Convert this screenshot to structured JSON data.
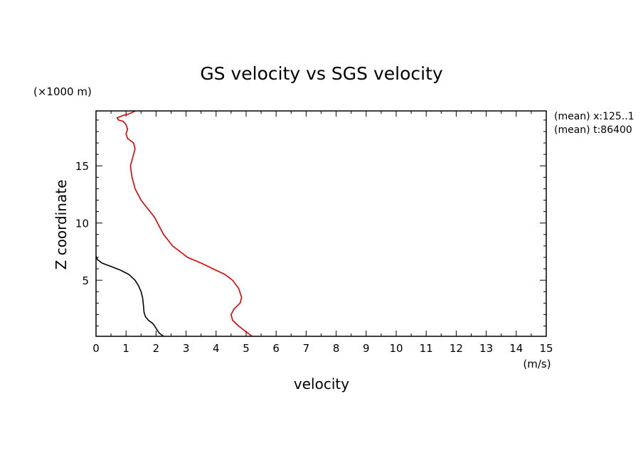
{
  "chart_data": {
    "type": "line",
    "title": "GS velocity vs SGS velocity",
    "xlabel": "velocity",
    "xunit": "(m/s)",
    "ylabel": "Z coordinate",
    "yunit": "(×1000 m)",
    "xlim": [
      0,
      15
    ],
    "ylim": [
      0.1,
      19.8
    ],
    "x_ticks": [
      0,
      1,
      2,
      3,
      4,
      5,
      6,
      7,
      8,
      9,
      10,
      11,
      12,
      13,
      14,
      15
    ],
    "y_ticks": [
      5,
      10,
      15
    ],
    "grid": false,
    "annotations": [
      "(mean) x:125..1",
      "(mean) t:86400"
    ],
    "series": [
      {
        "color": "#e00000",
        "points": [
          [
            5.2,
            0.1
          ],
          [
            5.0,
            0.5
          ],
          [
            4.75,
            1.0
          ],
          [
            4.55,
            1.5
          ],
          [
            4.5,
            2.0
          ],
          [
            4.6,
            2.5
          ],
          [
            4.8,
            3.0
          ],
          [
            4.85,
            3.5
          ],
          [
            4.75,
            4.3
          ],
          [
            4.55,
            5.0
          ],
          [
            4.3,
            5.5
          ],
          [
            3.9,
            6.0
          ],
          [
            3.5,
            6.5
          ],
          [
            3.05,
            7.0
          ],
          [
            2.8,
            7.5
          ],
          [
            2.55,
            8.0
          ],
          [
            2.4,
            8.5
          ],
          [
            2.25,
            9.0
          ],
          [
            2.15,
            9.5
          ],
          [
            2.05,
            10.0
          ],
          [
            1.95,
            10.5
          ],
          [
            1.8,
            11.0
          ],
          [
            1.65,
            11.5
          ],
          [
            1.5,
            12.0
          ],
          [
            1.4,
            12.5
          ],
          [
            1.3,
            13.0
          ],
          [
            1.25,
            13.5
          ],
          [
            1.2,
            14.0
          ],
          [
            1.17,
            14.5
          ],
          [
            1.15,
            15.0
          ],
          [
            1.2,
            15.5
          ],
          [
            1.25,
            16.0
          ],
          [
            1.3,
            16.5
          ],
          [
            1.25,
            17.0
          ],
          [
            1.05,
            17.4
          ],
          [
            1.0,
            17.8
          ],
          [
            1.05,
            18.2
          ],
          [
            1.0,
            18.6
          ],
          [
            0.9,
            18.9
          ],
          [
            0.75,
            19.0
          ],
          [
            0.7,
            19.2
          ],
          [
            0.9,
            19.4
          ],
          [
            1.05,
            19.5
          ],
          [
            1.2,
            19.65
          ],
          [
            1.3,
            19.8
          ]
        ]
      },
      {
        "color": "#000000",
        "points": [
          [
            2.25,
            0.1
          ],
          [
            2.1,
            0.4
          ],
          [
            2.0,
            0.8
          ],
          [
            1.9,
            1.2
          ],
          [
            1.75,
            1.5
          ],
          [
            1.65,
            1.8
          ],
          [
            1.6,
            2.2
          ],
          [
            1.58,
            2.8
          ],
          [
            1.55,
            3.5
          ],
          [
            1.5,
            4.0
          ],
          [
            1.42,
            4.5
          ],
          [
            1.3,
            5.0
          ],
          [
            1.1,
            5.5
          ],
          [
            0.8,
            5.9
          ],
          [
            0.5,
            6.2
          ],
          [
            0.2,
            6.5
          ],
          [
            0.05,
            6.8
          ],
          [
            0.0,
            7.1
          ]
        ]
      }
    ]
  }
}
